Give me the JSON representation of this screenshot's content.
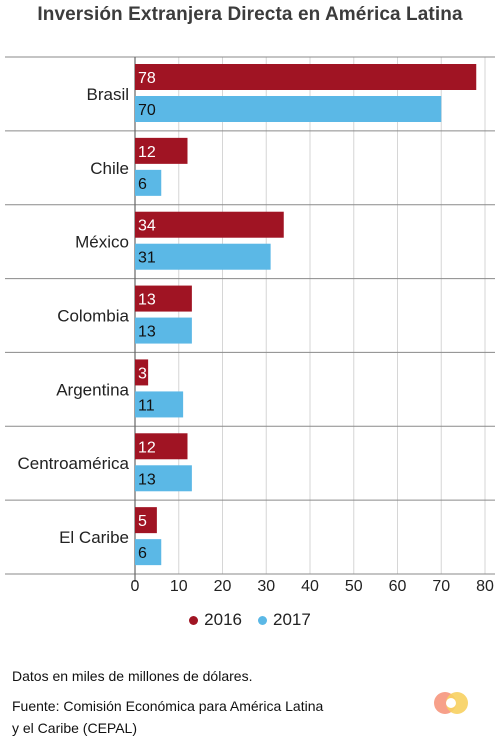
{
  "title": "Inversión Extranjera Directa en América Latina",
  "chart_data": {
    "type": "bar",
    "orientation": "horizontal",
    "title": "Inversión Extranjera Directa en América Latina",
    "categories": [
      "Brasil",
      "Chile",
      "México",
      "Colombia",
      "Argentina",
      "Centroamérica",
      "El Caribe"
    ],
    "series": [
      {
        "name": "2016",
        "color": "#a01423",
        "values": [
          78,
          12,
          34,
          13,
          3,
          12,
          5
        ]
      },
      {
        "name": "2017",
        "color": "#5bb8e6",
        "values": [
          70,
          6,
          31,
          13,
          11,
          13,
          6
        ]
      }
    ],
    "xlim": [
      0,
      80
    ],
    "xticks": [
      0,
      10,
      20,
      30,
      40,
      50,
      60,
      70,
      80
    ],
    "grid": true,
    "legend": "bottom",
    "data_labels": true
  },
  "legend": [
    {
      "label": "2016",
      "color": "#a01423"
    },
    {
      "label": "2017",
      "color": "#5bb8e6"
    }
  ],
  "notes": {
    "units": "Datos en miles de millones de dólares.",
    "source_line1": "Fuente: Comisión Económica para América Latina",
    "source_line2": "y el Caribe (CEPAL)"
  },
  "logo_icon": "publisher-logo-icon"
}
